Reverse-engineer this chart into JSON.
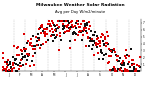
{
  "title": "Milwaukee Weather Solar Radiation",
  "subtitle": "Avg per Day W/m2/minute",
  "background_color": "#ffffff",
  "dot_color_red": "#dd0000",
  "dot_color_black": "#111111",
  "ylim": [
    0,
    7.5
  ],
  "ytick_labels": [
    "1",
    "2",
    "3",
    "4",
    "5",
    "6",
    "7"
  ],
  "ytick_vals": [
    1,
    2,
    3,
    4,
    5,
    6,
    7
  ],
  "grid_color": "#bbbbbb",
  "month_days": [
    0,
    31,
    59,
    90,
    120,
    151,
    181,
    212,
    243,
    273,
    304,
    334,
    365
  ],
  "month_labels": [
    "J",
    "F",
    "M",
    "A",
    "M",
    "J",
    "J",
    "A",
    "S",
    "O",
    "N",
    "D"
  ],
  "seed": 99,
  "n_days": 365,
  "dot_size": 0.6,
  "title_fontsize": 3.2,
  "tick_fontsize": 2.0
}
